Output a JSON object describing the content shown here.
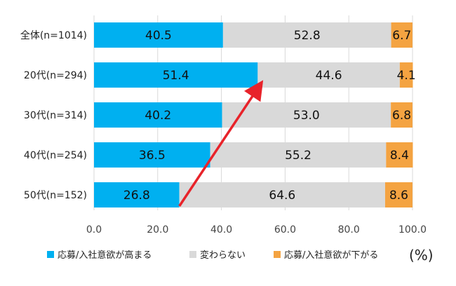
{
  "chart_data": {
    "type": "bar",
    "orientation": "horizontal",
    "stacked": true,
    "categories": [
      "全体(n=1014)",
      "20代(n=294)",
      "30代(n=314)",
      "40代(n=254)",
      "50代(n=152)"
    ],
    "series": [
      {
        "name": "応募/入社意欲が高まる",
        "color": "#00B0F0",
        "values": [
          40.5,
          51.4,
          40.2,
          36.5,
          26.8
        ]
      },
      {
        "name": "変わらない",
        "color": "#D9D9D9",
        "values": [
          52.8,
          44.6,
          53.0,
          55.2,
          64.6
        ]
      },
      {
        "name": "応募/入社意欲が下がる",
        "color": "#F4A341",
        "values": [
          6.7,
          4.1,
          6.8,
          8.4,
          8.6
        ]
      }
    ],
    "value_labels": [
      [
        "40.5",
        "51.4",
        "40.2",
        "36.5",
        "26.8"
      ],
      [
        "52.8",
        "44.6",
        "53.0",
        "55.2",
        "64.6"
      ],
      [
        "6.7",
        "4.1",
        "6.8",
        "8.4",
        "8.6"
      ]
    ],
    "xlim": [
      0,
      100
    ],
    "xticks": [
      0,
      20,
      40,
      60,
      80,
      100
    ],
    "xtick_labels": [
      "0.0",
      "20.0",
      "40.0",
      "60.0",
      "80.0",
      "100.0"
    ],
    "grid": true,
    "legend_position": "bottom",
    "unit_label": "(%)",
    "annotation": {
      "type": "arrow",
      "color": "#E8232A",
      "from": {
        "category": "50代(n=152)",
        "x": 26.8
      },
      "to": {
        "category": "20代(n=294)",
        "x": 51.4
      }
    }
  }
}
